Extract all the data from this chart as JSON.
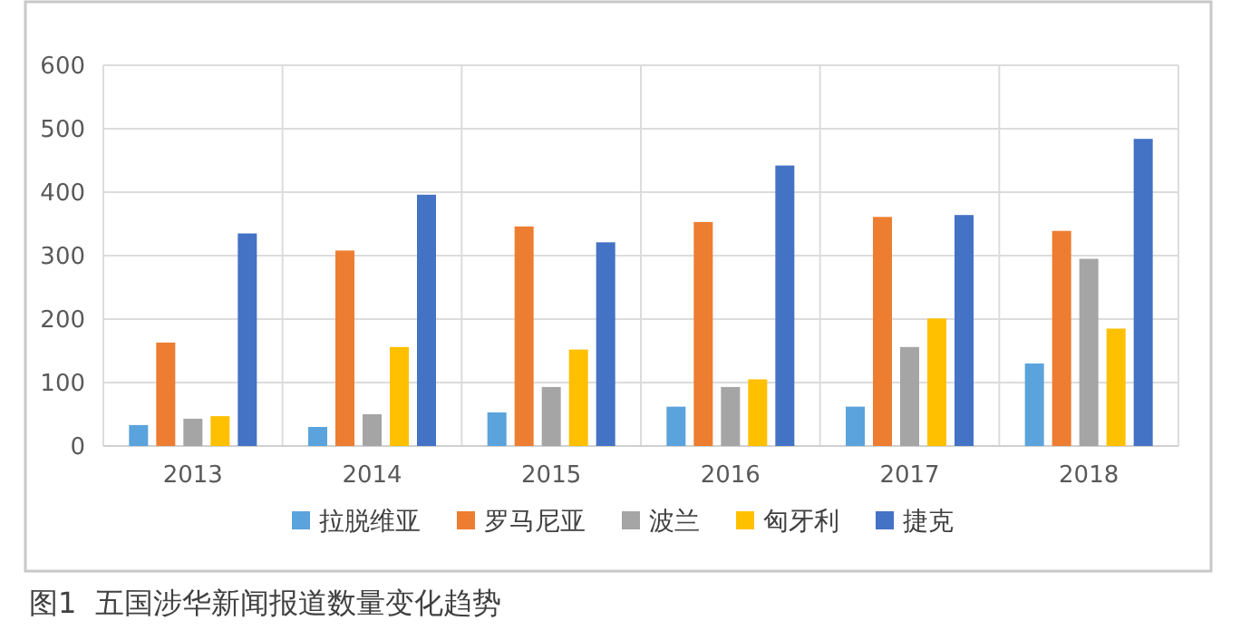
{
  "chart_data": {
    "type": "bar",
    "categories": [
      "2013",
      "2014",
      "2015",
      "2016",
      "2017",
      "2018"
    ],
    "series": [
      {
        "name": "拉脱维亚",
        "color": "#5ba3dc",
        "values": [
          33,
          30,
          53,
          62,
          62,
          130
        ]
      },
      {
        "name": "罗马尼亚",
        "color": "#ed7d31",
        "values": [
          163,
          308,
          346,
          353,
          361,
          339
        ]
      },
      {
        "name": "波兰",
        "color": "#a5a5a5",
        "values": [
          43,
          50,
          93,
          93,
          156,
          295
        ]
      },
      {
        "name": "匈牙利",
        "color": "#ffc000",
        "values": [
          47,
          156,
          152,
          105,
          201,
          185
        ]
      },
      {
        "name": "捷克",
        "color": "#4472c4",
        "values": [
          335,
          396,
          321,
          442,
          364,
          484
        ]
      }
    ],
    "ylim": [
      0,
      600
    ],
    "yticks": [
      0,
      100,
      200,
      300,
      400,
      500,
      600
    ],
    "grid": true,
    "legend": "bottom",
    "annotations": [
      "图1  五国涉华新闻报道数量变化趋势"
    ]
  }
}
